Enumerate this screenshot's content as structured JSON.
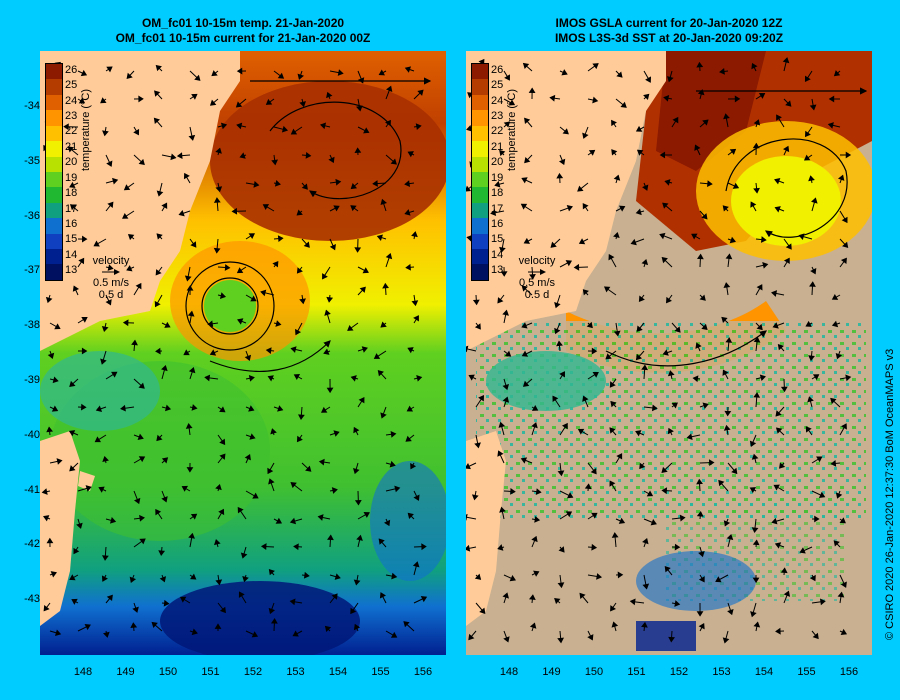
{
  "left_panel": {
    "title_line1": "OM_fc01 10-15m temp. 21-Jan-2020",
    "title_line2": "OM_fc01 10-15m current for 21-Jan-2020 00Z"
  },
  "right_panel": {
    "title_line1": "IMOS GSLA current for 20-Jan-2020 12Z",
    "title_line2": "IMOS L3S-3d SST at 20-Jan-2020 09:20Z"
  },
  "colorbar": {
    "label": "temperature (°C)",
    "ticks": [
      "26",
      "25",
      "24",
      "23",
      "22",
      "21",
      "20",
      "19",
      "18",
      "17",
      "16",
      "15",
      "14",
      "13"
    ],
    "colors": [
      "#8b1a00",
      "#b43c00",
      "#e06000",
      "#ff9400",
      "#ffc000",
      "#f0f000",
      "#b8e000",
      "#60d020",
      "#20b830",
      "#10a080",
      "#1070d0",
      "#1040c0",
      "#002090",
      "#001060"
    ]
  },
  "velocity_legend": {
    "title": "velocity",
    "speed": "0.5 m/s",
    "duration": "0.5 d"
  },
  "y_axis_labels": [
    "-34",
    "-35",
    "-36",
    "-37",
    "-38",
    "-39",
    "-40",
    "-41",
    "-42",
    "-43"
  ],
  "x_axis_labels": [
    "148",
    "149",
    "150",
    "151",
    "152",
    "153",
    "154",
    "155",
    "156"
  ],
  "credit": "© CSIRO 2020   26-Jan-2020 12:37:30 BoM OceanMAPS v3",
  "colors": {
    "background": "#00ccff",
    "land": "#ffcc99",
    "no_data": "#c8b090"
  }
}
